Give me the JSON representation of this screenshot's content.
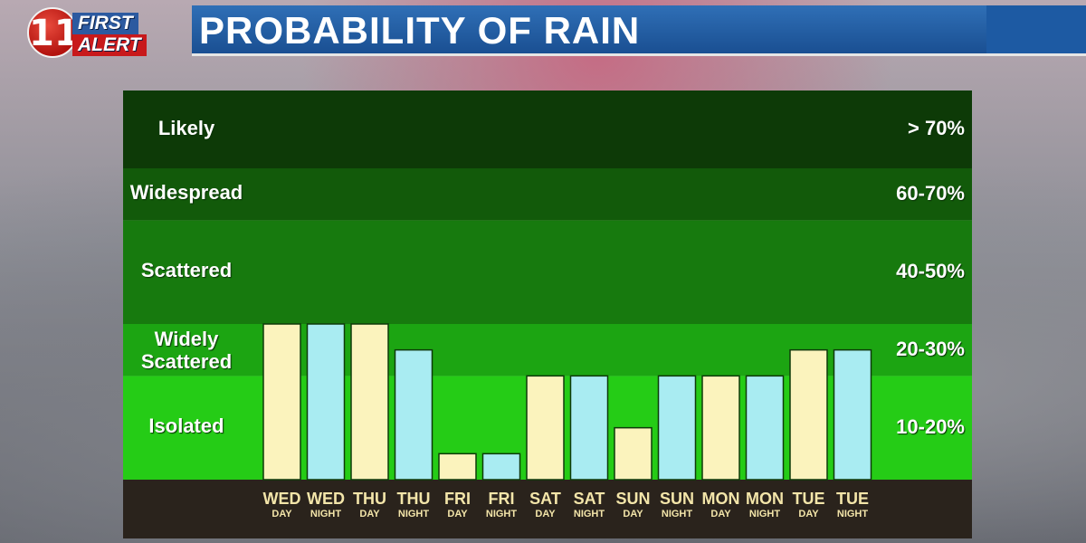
{
  "header": {
    "logo_line1": "FIRST",
    "logo_line2": "ALERT",
    "logo_mark": "11",
    "title": "PROBABILITY OF RAIN"
  },
  "colors": {
    "day_bar": "#fbf3bd",
    "night_bar": "#a9ecf2",
    "zone_likely": "#0d3a07",
    "zone_widespread": "#125a0a",
    "zone_scattered": "#177a0e",
    "zone_widely": "#1ca512",
    "zone_isolated": "#25cc16",
    "axis_band": "#2a231c"
  },
  "chart_data": {
    "type": "bar",
    "categories": [
      {
        "day": "WED",
        "part": "DAY"
      },
      {
        "day": "WED",
        "part": "NIGHT"
      },
      {
        "day": "THU",
        "part": "DAY"
      },
      {
        "day": "THU",
        "part": "NIGHT"
      },
      {
        "day": "FRI",
        "part": "DAY"
      },
      {
        "day": "FRI",
        "part": "NIGHT"
      },
      {
        "day": "SAT",
        "part": "DAY"
      },
      {
        "day": "SAT",
        "part": "NIGHT"
      },
      {
        "day": "SUN",
        "part": "DAY"
      },
      {
        "day": "SUN",
        "part": "NIGHT"
      },
      {
        "day": "MON",
        "part": "DAY"
      },
      {
        "day": "MON",
        "part": "NIGHT"
      },
      {
        "day": "TUE",
        "part": "DAY"
      },
      {
        "day": "TUE",
        "part": "NIGHT"
      }
    ],
    "values": [
      30,
      30,
      30,
      25,
      5,
      5,
      20,
      20,
      10,
      20,
      20,
      20,
      25,
      25
    ],
    "ylim": [
      0,
      75
    ],
    "zones": [
      {
        "label": "Likely",
        "range": "> 70%",
        "from": 60,
        "to": 75
      },
      {
        "label": "Widespread",
        "range": "60-70%",
        "from": 50,
        "to": 60
      },
      {
        "label": "Scattered",
        "range": "40-50%",
        "from": 30,
        "to": 50
      },
      {
        "label": "Widely Scattered",
        "range": "20-30%",
        "from": 20,
        "to": 30
      },
      {
        "label": "Isolated",
        "range": "10-20%",
        "from": 0,
        "to": 20
      }
    ]
  }
}
